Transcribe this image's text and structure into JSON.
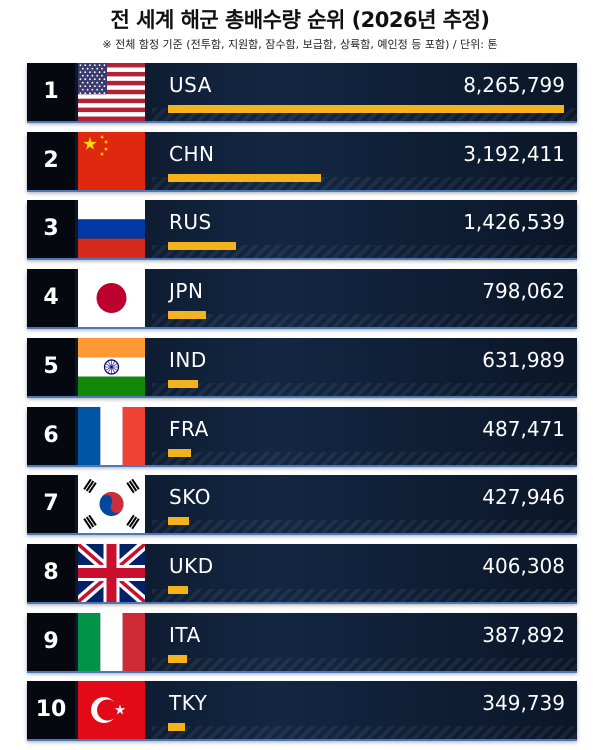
{
  "title": "전 세계 해군 총배수량 순위 (2026년 추정)",
  "subtitle": "※ 전체 함정 기준 (전투함, 지원함, 잠수함, 보급함, 상륙함, 예인정 등 포함) / 단위: 톤",
  "colors": {
    "bar": "#f4b21c",
    "row_bg": "#0f1f36",
    "row_edge": "#4a78b8"
  },
  "chart_data": {
    "type": "bar",
    "title": "전 세계 해군 총배수량 순위 (2026년 추정)",
    "subtitle": "※ 전체 함정 기준 (전투함, 지원함, 잠수함, 보급함, 상륙함, 예인정 등 포함) / 단위: 톤",
    "categories": [
      "USA",
      "CHN",
      "RUS",
      "JPN",
      "IND",
      "FRA",
      "SKO",
      "UKD",
      "ITA",
      "TKY"
    ],
    "values": [
      8265799,
      3192411,
      1426539,
      798062,
      631989,
      487471,
      427946,
      406308,
      387892,
      349739
    ],
    "ylim": [
      0,
      8265799
    ],
    "orientation": "horizontal"
  },
  "rows": [
    {
      "rank": "1",
      "code": "USA",
      "value": "8,265,799",
      "flag_icon": "usa-flag-icon"
    },
    {
      "rank": "2",
      "code": "CHN",
      "value": "3,192,411",
      "flag_icon": "china-flag-icon"
    },
    {
      "rank": "3",
      "code": "RUS",
      "value": "1,426,539",
      "flag_icon": "russia-flag-icon"
    },
    {
      "rank": "4",
      "code": "JPN",
      "value": "798,062",
      "flag_icon": "japan-flag-icon"
    },
    {
      "rank": "5",
      "code": "IND",
      "value": "631,989",
      "flag_icon": "india-flag-icon"
    },
    {
      "rank": "6",
      "code": "FRA",
      "value": "487,471",
      "flag_icon": "france-flag-icon"
    },
    {
      "rank": "7",
      "code": "SKO",
      "value": "427,946",
      "flag_icon": "south-korea-flag-icon"
    },
    {
      "rank": "8",
      "code": "UKD",
      "value": "406,308",
      "flag_icon": "uk-flag-icon"
    },
    {
      "rank": "9",
      "code": "ITA",
      "value": "387,892",
      "flag_icon": "italy-flag-icon"
    },
    {
      "rank": "10",
      "code": "TKY",
      "value": "349,739",
      "flag_icon": "turkey-flag-icon"
    }
  ]
}
